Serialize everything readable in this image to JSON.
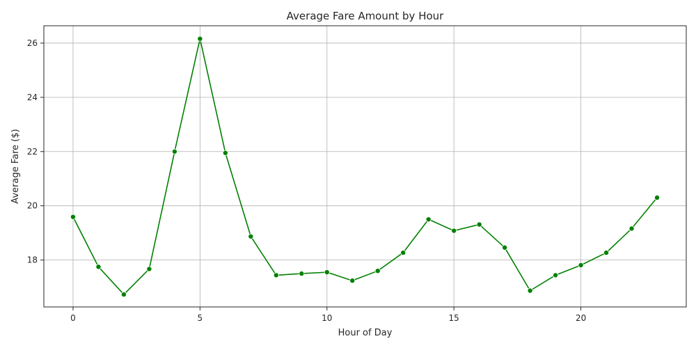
{
  "chart_data": {
    "type": "line",
    "title": "Average Fare Amount by Hour",
    "xlabel": "Hour of Day",
    "ylabel": "Average Fare ($)",
    "xlim": [
      -1.15,
      24.15
    ],
    "ylim": [
      16.27,
      26.64
    ],
    "xticks": [
      0,
      5,
      10,
      15,
      20
    ],
    "yticks": [
      18,
      20,
      22,
      24,
      26
    ],
    "grid": true,
    "line_color": "#008000",
    "marker_color": "#008000",
    "series": [
      {
        "name": "Average Fare",
        "x": [
          0,
          1,
          2,
          3,
          4,
          5,
          6,
          7,
          8,
          9,
          10,
          11,
          12,
          13,
          14,
          15,
          16,
          17,
          18,
          19,
          20,
          21,
          22,
          23
        ],
        "values": [
          19.59,
          17.75,
          16.73,
          17.67,
          22.0,
          26.16,
          21.95,
          18.87,
          17.44,
          17.5,
          17.55,
          17.24,
          17.6,
          18.27,
          19.5,
          19.08,
          19.31,
          18.46,
          16.87,
          17.44,
          17.81,
          18.27,
          19.16,
          20.3
        ]
      }
    ]
  }
}
